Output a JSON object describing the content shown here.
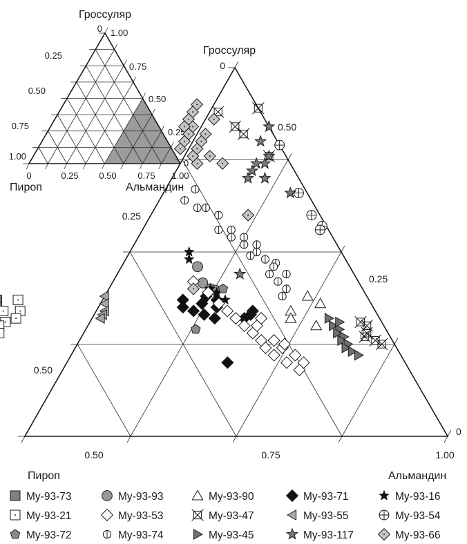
{
  "chart_data": [
    {
      "type": "scatter",
      "subtype": "ternary",
      "role": "inset-overview",
      "vertex_labels": {
        "top": "Гроссуляр",
        "left": "Пироп",
        "right": "Альмандин"
      },
      "left_axis_ticks": [
        "1.00",
        "0.75",
        "0.50",
        "0.25",
        "0"
      ],
      "right_axis_ticks": [
        "1.00",
        "0.75",
        "0.50",
        "0.25",
        "0"
      ],
      "bottom_axis_ticks": [
        "0",
        "0.25",
        "0.50",
        "0.75",
        "1.00"
      ],
      "grid_step": 0.125,
      "highlighted_region": {
        "description_shown": false,
        "vertices": [
          {
            "grossular": 0.5,
            "pyrope": 0.0,
            "almandine": 0.5
          },
          {
            "grossular": 0.0,
            "pyrope": 0.5,
            "almandine": 0.5
          },
          {
            "grossular": 0.0,
            "pyrope": 0.0,
            "almandine": 1.0
          }
        ],
        "color": "#9c9c9c"
      }
    },
    {
      "type": "scatter",
      "subtype": "ternary",
      "role": "main",
      "vertex_labels": {
        "top": "Гроссуляр",
        "left": "Пироп",
        "right": "Альмандин"
      },
      "left_axis_ticks": [
        "0.50",
        "0.25",
        "0"
      ],
      "right_axis_ticks": [
        "0.50",
        "0.25",
        "0"
      ],
      "bottom_axis_ticks": [
        "0.50",
        "0.75",
        "1.00"
      ],
      "ranges": {
        "grossular": [
          0,
          0.5
        ],
        "pyrope": [
          0,
          0.5
        ],
        "almandine": [
          0.5,
          1.0
        ]
      },
      "grid": true,
      "series": [
        {
          "name": "My-93-73",
          "marker": "square-gray",
          "points": [
            [
              0.185,
              0.44
            ],
            [
              0.175,
              0.445
            ],
            [
              0.17,
              0.455
            ],
            [
              0.16,
              0.46
            ],
            [
              0.17,
              0.47
            ],
            [
              0.155,
              0.475
            ],
            [
              0.165,
              0.48
            ],
            [
              0.15,
              0.485
            ],
            [
              0.18,
              0.485
            ],
            [
              0.19,
              0.47
            ],
            [
              0.16,
              0.495
            ],
            [
              0.175,
              0.495
            ],
            [
              0.185,
              0.46
            ],
            [
              0.195,
              0.455
            ],
            [
              0.155,
              0.465
            ]
          ]
        },
        {
          "name": "My-93-93",
          "marker": "circle-gray",
          "points": [
            [
              0.23,
              0.18
            ],
            [
              0.2,
              0.18
            ],
            [
              0.198,
              0.175
            ],
            [
              0.208,
              0.185
            ]
          ]
        },
        {
          "name": "My-93-90",
          "marker": "triangle-open",
          "points": [
            [
              0.15,
              0.08
            ],
            [
              0.17,
              0.1
            ],
            [
              0.19,
              0.07
            ],
            [
              0.18,
              0.06
            ],
            [
              0.16,
              0.105
            ]
          ]
        },
        {
          "name": "My-93-71",
          "marker": "diamond-black",
          "points": [
            [
              0.1,
              0.21
            ],
            [
              0.175,
              0.225
            ],
            [
              0.185,
              0.22
            ],
            [
              0.17,
              0.215
            ],
            [
              0.165,
              0.205
            ],
            [
              0.18,
              0.2
            ],
            [
              0.16,
              0.195
            ],
            [
              0.19,
              0.19
            ],
            [
              0.175,
              0.185
            ],
            [
              0.185,
              0.18
            ],
            [
              0.16,
              0.16
            ],
            [
              0.165,
              0.15
            ],
            [
              0.17,
              0.145
            ]
          ]
        },
        {
          "name": "My-93-16",
          "marker": "star-black",
          "points": [
            [
              0.25,
              0.18
            ],
            [
              0.24,
              0.185
            ],
            [
              0.2,
              0.18
            ],
            [
              0.195,
              0.175
            ],
            [
              0.185,
              0.17
            ]
          ]
        },
        {
          "name": "My-93-21",
          "marker": "square-open-dot",
          "points": [
            [
              0.185,
              0.415
            ],
            [
              0.17,
              0.42
            ],
            [
              0.16,
              0.43
            ],
            [
              0.17,
              0.44
            ],
            [
              0.155,
              0.445
            ],
            [
              0.15,
              0.455
            ],
            [
              0.165,
              0.46
            ],
            [
              0.14,
              0.46
            ]
          ]
        },
        {
          "name": "My-93-53",
          "marker": "diamond-open",
          "points": [
            [
              0.21,
              0.195
            ],
            [
              0.195,
              0.185
            ],
            [
              0.18,
              0.18
            ],
            [
              0.17,
              0.175
            ],
            [
              0.16,
              0.17
            ],
            [
              0.15,
              0.165
            ],
            [
              0.14,
              0.16
            ],
            [
              0.13,
              0.155
            ],
            [
              0.12,
              0.155
            ],
            [
              0.11,
              0.15
            ],
            [
              0.1,
              0.14
            ],
            [
              0.09,
              0.13
            ],
            [
              0.15,
              0.15
            ],
            [
              0.16,
              0.14
            ],
            [
              0.13,
              0.14
            ],
            [
              0.12,
              0.135
            ],
            [
              0.125,
              0.13
            ],
            [
              0.11,
              0.125
            ],
            [
              0.1,
              0.12
            ]
          ]
        },
        {
          "name": "My-93-47",
          "marker": "xbox",
          "points": [
            [
              0.445,
              0.0
            ],
            [
              0.38,
              0.02
            ],
            [
              0.15,
              0.02
            ],
            [
              0.155,
              0.025
            ],
            [
              0.14,
              0.025
            ],
            [
              0.135,
              0.03
            ],
            [
              0.13,
              0.02
            ],
            [
              0.125,
              0.015
            ],
            [
              0.44,
              0.05
            ],
            [
              0.42,
              0.04
            ],
            [
              0.41,
              0.035
            ]
          ]
        },
        {
          "name": "My-93-55",
          "marker": "triangle-left-gray",
          "points": [
            [
              0.19,
              0.31
            ],
            [
              0.18,
              0.315
            ],
            [
              0.17,
              0.32
            ],
            [
              0.165,
              0.325
            ],
            [
              0.16,
              0.33
            ]
          ]
        },
        {
          "name": "My-93-54",
          "marker": "circle-cross",
          "points": [
            [
              0.395,
              0.0
            ],
            [
              0.33,
              0.01
            ],
            [
              0.3,
              0.01
            ],
            [
              0.285,
              0.005
            ],
            [
              0.28,
              0.01
            ]
          ]
        },
        {
          "name": "My-93-72",
          "marker": "pentagon-gray",
          "points": [
            [
              0.145,
              0.225
            ],
            [
              0.2,
              0.165
            ]
          ]
        },
        {
          "name": "My-93-74",
          "marker": "circle-bar",
          "points": [
            [
              0.335,
              0.13
            ],
            [
              0.32,
              0.15
            ],
            [
              0.31,
              0.14
            ],
            [
              0.31,
              0.13
            ],
            [
              0.3,
              0.12
            ],
            [
              0.28,
              0.13
            ],
            [
              0.28,
              0.115
            ],
            [
              0.27,
              0.12
            ],
            [
              0.27,
              0.105
            ],
            [
              0.26,
              0.11
            ],
            [
              0.26,
              0.095
            ],
            [
              0.25,
              0.1
            ],
            [
              0.245,
              0.11
            ],
            [
              0.24,
              0.095
            ],
            [
              0.235,
              0.085
            ],
            [
              0.23,
              0.09
            ],
            [
              0.22,
              0.1
            ],
            [
              0.22,
              0.08
            ],
            [
              0.21,
              0.095
            ],
            [
              0.2,
              0.09
            ],
            [
              0.19,
              0.1
            ]
          ]
        },
        {
          "name": "My-93-45",
          "marker": "triangle-right-gray",
          "points": [
            [
              0.15,
              0.06
            ],
            [
              0.145,
              0.055
            ],
            [
              0.14,
              0.06
            ],
            [
              0.135,
              0.055
            ],
            [
              0.13,
              0.06
            ],
            [
              0.125,
              0.055
            ],
            [
              0.12,
              0.06
            ],
            [
              0.115,
              0.055
            ],
            [
              0.11,
              0.05
            ],
            [
              0.16,
              0.06
            ],
            [
              0.155,
              0.05
            ]
          ]
        },
        {
          "name": "My-93-117",
          "marker": "star-gray",
          "points": [
            [
              0.42,
              0.0
            ],
            [
              0.4,
              0.02
            ],
            [
              0.38,
              0.02
            ],
            [
              0.37,
              0.03
            ],
            [
              0.37,
              0.04
            ],
            [
              0.36,
              0.05
            ],
            [
              0.35,
              0.04
            ],
            [
              0.35,
              0.06
            ],
            [
              0.33,
              0.02
            ],
            [
              0.22,
              0.135
            ]
          ]
        },
        {
          "name": "My-93-66",
          "marker": "diamond-gray-dot",
          "points": [
            [
              0.45,
              0.07
            ],
            [
              0.44,
              0.08
            ],
            [
              0.43,
              0.09
            ],
            [
              0.42,
              0.09
            ],
            [
              0.42,
              0.1
            ],
            [
              0.41,
              0.1
            ],
            [
              0.41,
              0.08
            ],
            [
              0.4,
              0.09
            ],
            [
              0.4,
              0.11
            ],
            [
              0.39,
              0.1
            ],
            [
              0.39,
              0.12
            ],
            [
              0.38,
              0.11
            ],
            [
              0.38,
              0.09
            ],
            [
              0.37,
              0.11
            ],
            [
              0.37,
              0.08
            ],
            [
              0.43,
              0.06
            ],
            [
              0.3,
              0.085
            ],
            [
              0.2,
              0.2
            ]
          ]
        }
      ]
    }
  ]
}
